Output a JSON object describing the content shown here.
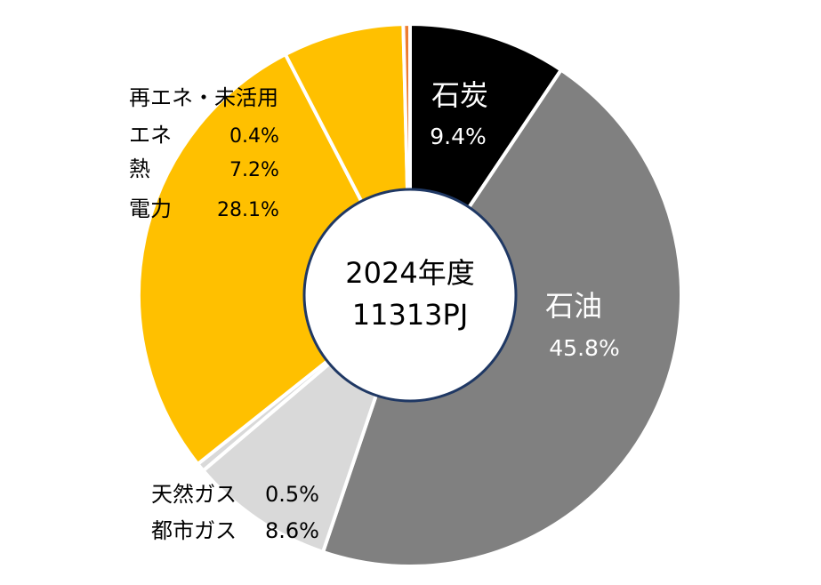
{
  "chart_data": {
    "type": "pie",
    "style": "donut",
    "center_text": [
      "2024年度",
      "11313PJ"
    ],
    "slices": [
      {
        "label": "石炭",
        "value": 9.4,
        "value_text": "9.4%",
        "color": "#000000",
        "text_color": "#ffffff"
      },
      {
        "label": "石油",
        "value": 45.8,
        "value_text": "45.8%",
        "color": "#808080",
        "text_color": "#ffffff"
      },
      {
        "label": "都市ガス",
        "value": 8.6,
        "value_text": "8.6%",
        "color": "#d9d9d9",
        "text_color": "#000000"
      },
      {
        "label": "天然ガス",
        "value": 0.5,
        "value_text": "0.5%",
        "color": "#d9d9d9",
        "text_color": "#000000"
      },
      {
        "label": "電力",
        "value": 28.1,
        "value_text": "28.1%",
        "color": "#ffc000",
        "text_color": "#000000"
      },
      {
        "label": "熱",
        "value": 7.2,
        "value_text": "7.2%",
        "color": "#ffc000",
        "text_color": "#000000"
      },
      {
        "label": "再エネ・未活用エネ",
        "value": 0.4,
        "value_text": "0.4%",
        "color": "#ed7d31",
        "text_color": "#000000"
      }
    ],
    "group_label": {
      "line1": "再エネ・未活用",
      "line2": "エネ"
    },
    "colors": {
      "separator": "#ffffff",
      "center_fill": "#ffffff",
      "center_stroke": "#1f3864"
    }
  }
}
